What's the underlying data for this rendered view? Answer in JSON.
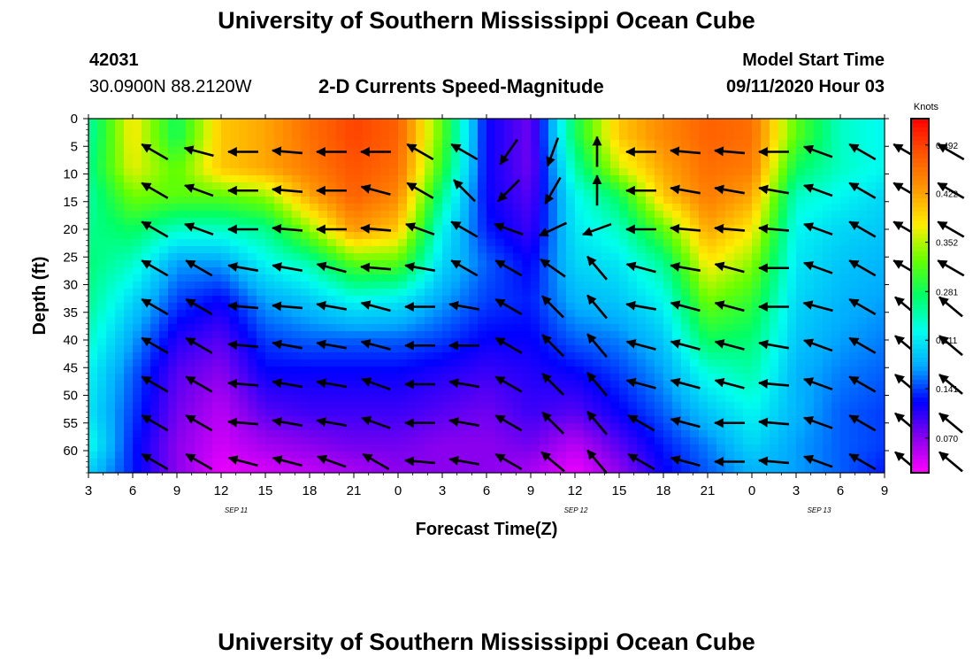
{
  "header": {
    "title": "University of Southern Mississippi Ocean Cube",
    "station_id": "42031",
    "station_coords": "30.0900N 88.2120W",
    "plot_title": "2-D Currents Speed-Magnitude",
    "model_start_label": "Model Start Time",
    "model_start_value": "09/11/2020 Hour 03"
  },
  "footer": {
    "title": "University of Southern Mississippi Ocean Cube"
  },
  "chart_data": {
    "type": "heatmap",
    "title": "2-D Currents Speed-Magnitude",
    "xlabel": "Forecast Time(Z)",
    "ylabel": "Depth (ft)",
    "x_tick_labels": [
      "3",
      "6",
      "9",
      "12",
      "15",
      "18",
      "21",
      "0",
      "3",
      "6",
      "9",
      "12",
      "15",
      "18",
      "21",
      "0",
      "3",
      "6",
      "9"
    ],
    "date_labels": [
      "SEP 11",
      "SEP 12",
      "SEP 13"
    ],
    "y_tick_labels": [
      "0",
      "5",
      "10",
      "15",
      "20",
      "25",
      "30",
      "35",
      "40",
      "45",
      "50",
      "55",
      "60"
    ],
    "y_range": [
      0,
      64
    ],
    "y_inverted": true,
    "colorbar": {
      "unit": "Knots",
      "tick_labels": [
        "0.492",
        "0.422",
        "0.352",
        "0.281",
        "0.211",
        "0.141",
        "0.070"
      ],
      "range": [
        0.02,
        0.53
      ],
      "colors": [
        "#ff00ff",
        "#8800ee",
        "#0000ff",
        "#00aaff",
        "#00ffee",
        "#00ff66",
        "#66ff00",
        "#ffee00",
        "#ff9900",
        "#ff5500",
        "#ff0000"
      ]
    },
    "depth_bins_ft": [
      3,
      9,
      14,
      20,
      26,
      33,
      40,
      46,
      53,
      59,
      63
    ],
    "times": [
      "3",
      "6",
      "9",
      "12",
      "15",
      "18",
      "21",
      "0",
      "3",
      "6",
      "9",
      "12",
      "15",
      "18",
      "21",
      "0",
      "3",
      "6",
      "9"
    ],
    "speed_knots": [
      [
        0.25,
        0.38,
        0.28,
        0.4,
        0.42,
        0.46,
        0.49,
        0.47,
        0.32,
        0.12,
        0.08,
        0.28,
        0.4,
        0.44,
        0.47,
        0.46,
        0.32,
        0.24,
        0.22
      ],
      [
        0.26,
        0.37,
        0.32,
        0.4,
        0.42,
        0.45,
        0.48,
        0.46,
        0.3,
        0.12,
        0.08,
        0.25,
        0.36,
        0.42,
        0.46,
        0.45,
        0.28,
        0.24,
        0.22
      ],
      [
        0.25,
        0.33,
        0.32,
        0.32,
        0.34,
        0.42,
        0.47,
        0.44,
        0.26,
        0.12,
        0.09,
        0.22,
        0.28,
        0.4,
        0.45,
        0.42,
        0.24,
        0.22,
        0.2
      ],
      [
        0.26,
        0.28,
        0.24,
        0.24,
        0.26,
        0.34,
        0.43,
        0.4,
        0.22,
        0.13,
        0.1,
        0.21,
        0.24,
        0.32,
        0.42,
        0.38,
        0.22,
        0.2,
        0.19
      ],
      [
        0.27,
        0.24,
        0.17,
        0.17,
        0.22,
        0.25,
        0.32,
        0.32,
        0.2,
        0.15,
        0.12,
        0.2,
        0.21,
        0.26,
        0.38,
        0.34,
        0.21,
        0.19,
        0.18
      ],
      [
        0.26,
        0.2,
        0.14,
        0.12,
        0.17,
        0.19,
        0.22,
        0.21,
        0.17,
        0.14,
        0.13,
        0.18,
        0.19,
        0.22,
        0.33,
        0.3,
        0.2,
        0.18,
        0.17
      ],
      [
        0.24,
        0.17,
        0.11,
        0.09,
        0.14,
        0.15,
        0.15,
        0.15,
        0.14,
        0.12,
        0.12,
        0.15,
        0.16,
        0.19,
        0.28,
        0.27,
        0.19,
        0.17,
        0.16
      ],
      [
        0.22,
        0.15,
        0.09,
        0.07,
        0.12,
        0.12,
        0.12,
        0.12,
        0.11,
        0.1,
        0.11,
        0.12,
        0.14,
        0.17,
        0.23,
        0.25,
        0.18,
        0.16,
        0.15
      ],
      [
        0.21,
        0.14,
        0.08,
        0.05,
        0.09,
        0.1,
        0.1,
        0.1,
        0.09,
        0.08,
        0.1,
        0.09,
        0.12,
        0.15,
        0.19,
        0.22,
        0.18,
        0.15,
        0.14
      ],
      [
        0.23,
        0.13,
        0.07,
        0.04,
        0.06,
        0.07,
        0.08,
        0.08,
        0.07,
        0.07,
        0.08,
        0.05,
        0.09,
        0.13,
        0.16,
        0.2,
        0.17,
        0.15,
        0.14
      ],
      [
        0.2,
        0.13,
        0.07,
        0.03,
        0.04,
        0.05,
        0.06,
        0.07,
        0.07,
        0.07,
        0.06,
        0.03,
        0.07,
        0.12,
        0.15,
        0.18,
        0.17,
        0.15,
        0.13
      ]
    ],
    "vector_depths_ft": [
      6,
      13,
      20,
      27,
      34,
      41,
      48,
      55,
      62
    ],
    "vector_times_hours": [
      4.5,
      7.5,
      10.5,
      13.5,
      16.5,
      19.5,
      22.5,
      25.5,
      28.5,
      31.5,
      34.5,
      37.5,
      40.5,
      43.5,
      46.5,
      49.5,
      52.5,
      55.5,
      58.5
    ],
    "vector_direction_deg": [
      [
        300,
        285,
        270,
        275,
        270,
        270,
        300,
        300,
        215,
        200,
        0,
        270,
        275,
        275,
        270,
        290,
        300,
        300,
        300
      ],
      [
        300,
        290,
        270,
        275,
        270,
        285,
        300,
        315,
        225,
        210,
        0,
        270,
        280,
        280,
        280,
        290,
        300,
        300,
        300
      ],
      [
        300,
        290,
        270,
        275,
        270,
        275,
        290,
        300,
        290,
        245,
        250,
        270,
        275,
        275,
        275,
        290,
        300,
        300,
        300
      ],
      [
        300,
        300,
        280,
        280,
        285,
        275,
        280,
        300,
        300,
        305,
        320,
        285,
        280,
        285,
        270,
        290,
        300,
        300,
        300
      ],
      [
        300,
        300,
        275,
        275,
        280,
        285,
        270,
        280,
        300,
        315,
        320,
        280,
        285,
        285,
        270,
        285,
        300,
        310,
        310
      ],
      [
        300,
        300,
        275,
        280,
        280,
        285,
        270,
        270,
        300,
        315,
        320,
        285,
        285,
        285,
        280,
        290,
        300,
        310,
        310
      ],
      [
        300,
        300,
        275,
        280,
        280,
        290,
        270,
        280,
        300,
        315,
        320,
        285,
        285,
        285,
        275,
        290,
        300,
        310,
        310
      ],
      [
        300,
        300,
        275,
        280,
        280,
        290,
        270,
        280,
        300,
        315,
        320,
        300,
        285,
        270,
        275,
        290,
        300,
        310,
        310
      ],
      [
        300,
        300,
        285,
        285,
        290,
        300,
        275,
        280,
        300,
        310,
        320,
        300,
        285,
        270,
        275,
        290,
        300,
        310,
        310
      ]
    ]
  }
}
